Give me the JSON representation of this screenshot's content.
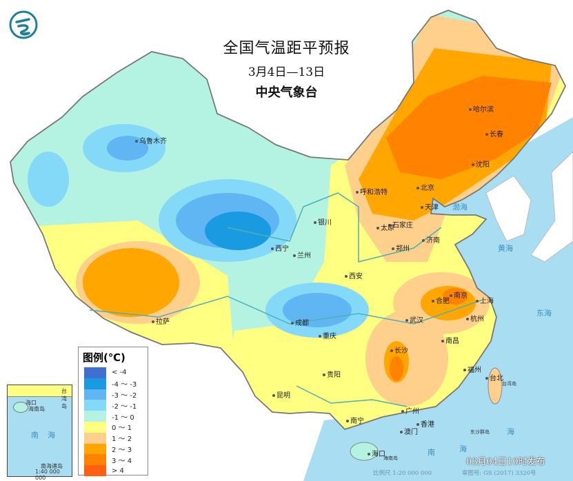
{
  "header": {
    "title": "全国气温距平预报",
    "date_range": "3月4日—13日",
    "agency": "中央气象台"
  },
  "legend": {
    "title": "图例(℃)",
    "items": [
      {
        "label": "< -4",
        "color": "#3f6fd0"
      },
      {
        "label": "-4 ～ -3",
        "color": "#1a9ae0"
      },
      {
        "label": "-3 ～ -2",
        "color": "#5fb6f2"
      },
      {
        "label": "-2 ～ -1",
        "color": "#84d9f8"
      },
      {
        "label": "-1 ～ 0",
        "color": "#b4f2e2"
      },
      {
        "label": "0 ～ 1",
        "color": "#ffff82"
      },
      {
        "label": "1 ～ 2",
        "color": "#ffcf8c"
      },
      {
        "label": "2 ～ 3",
        "color": "#ffa600"
      },
      {
        "label": "3 ～ 4",
        "color": "#ff8200"
      },
      {
        "label": "> 4",
        "color": "#ff5f12"
      }
    ]
  },
  "cities": [
    "乌鲁木齐",
    "哈尔滨",
    "长春",
    "沈阳",
    "呼和浩特",
    "北京",
    "天津",
    "石家庄",
    "太原",
    "济南",
    "银川",
    "西宁",
    "兰州",
    "西安",
    "郑州",
    "合肥",
    "南京",
    "上海",
    "杭州",
    "武汉",
    "南昌",
    "长沙",
    "成都",
    "重庆",
    "贵阳",
    "昆明",
    "拉萨",
    "南宁",
    "广州",
    "香港",
    "澳门",
    "福州",
    "台北",
    "海口"
  ],
  "seas": [
    "渤海",
    "黄海",
    "东海",
    "海",
    "南",
    "海",
    "台湾岛",
    "海南岛",
    "东沙群岛"
  ],
  "inset": {
    "sea1": "南",
    "sea2": "海",
    "label": "南海诸岛",
    "scale": "1:40 000 000",
    "city": "海口",
    "island": "海南岛",
    "taiwan": "台湾岛"
  },
  "footer": {
    "issued": "03月04日10时发布",
    "scale": "比例尺 1:20 000 000",
    "map_no": "审图号: GS (2017) 3320号"
  },
  "colors": {
    "sea": "#a9ddf2",
    "land_outside": "#ffffff",
    "border": "#777777",
    "river": "#4bb0b8"
  }
}
